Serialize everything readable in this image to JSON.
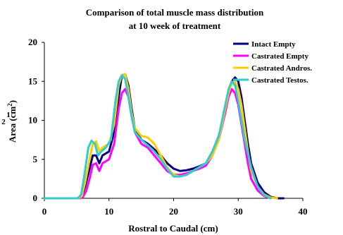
{
  "chart_data": {
    "type": "line",
    "title": "Comparison of total muscle mass distribution",
    "subtitle": "at 10 week of treatment",
    "xlabel": "Rostral to Caudal (cm)",
    "ylabel": "Area (cm",
    "ylabel_sup": "2",
    "ylabel_close": ")",
    "stray_chars": [
      "1",
      "2"
    ],
    "xlim": [
      0,
      40
    ],
    "ylim": [
      0,
      20
    ],
    "x_ticks": [
      "0",
      "10",
      "20",
      "30",
      "40"
    ],
    "y_ticks": [
      "0",
      "5",
      "10",
      "15",
      "20"
    ],
    "x_tick_values": [
      0,
      10,
      20,
      30,
      40
    ],
    "y_tick_values": [
      0,
      5,
      10,
      15,
      20
    ],
    "grid": false,
    "legend_position": "top-right",
    "series": [
      {
        "name": "Intact Empty",
        "color": "#000080",
        "x": [
          0,
          5,
          5.8,
          6.3,
          7,
          7.5,
          8,
          8.5,
          9,
          10,
          10.8,
          11.5,
          12,
          12.5,
          13,
          13.5,
          14,
          15,
          16,
          17,
          18,
          19,
          20,
          21,
          22,
          23,
          24,
          25,
          26,
          27,
          28,
          28.5,
          29,
          29.5,
          30,
          30.5,
          31,
          31.5,
          32,
          33,
          34,
          35,
          36,
          37
        ],
        "y": [
          0,
          0,
          0.2,
          1.5,
          3.8,
          5.5,
          5.5,
          4.5,
          5.5,
          6.0,
          8.5,
          13.0,
          15.8,
          15.9,
          14.5,
          11.5,
          9.0,
          7.5,
          7.0,
          6.3,
          5.5,
          4.5,
          3.8,
          3.5,
          3.6,
          3.8,
          4.1,
          4.5,
          6.0,
          8.0,
          11.5,
          13.5,
          15.0,
          15.5,
          15.0,
          13.0,
          10.0,
          7.0,
          4.5,
          2.0,
          0.8,
          0.2,
          0,
          0
        ]
      },
      {
        "name": "Castrated Empty",
        "color": "#ff00ff",
        "x": [
          0,
          5.5,
          6,
          6.5,
          7,
          7.5,
          8,
          8.5,
          9,
          10,
          10.8,
          11.5,
          12,
          12.5,
          13,
          13.5,
          14,
          15,
          16,
          17,
          18,
          19,
          20,
          21,
          22,
          23,
          24,
          25,
          26,
          27,
          28,
          28.5,
          29,
          29.5,
          30,
          30.5,
          31,
          31.5,
          32,
          33,
          34,
          35
        ],
        "y": [
          0,
          0,
          0.2,
          1.0,
          2.5,
          4.3,
          4.5,
          3.5,
          4.5,
          5.0,
          7.0,
          11.5,
          13.5,
          14.0,
          13.0,
          10.5,
          8.5,
          7.0,
          6.5,
          5.5,
          4.5,
          3.5,
          3.0,
          3.0,
          3.2,
          3.5,
          3.8,
          4.2,
          5.5,
          7.5,
          11.0,
          13.0,
          14.0,
          13.5,
          12.0,
          9.5,
          7.0,
          4.5,
          2.5,
          1.0,
          0.3,
          0
        ]
      },
      {
        "name": "Castrated Andros.",
        "color": "#ffcc00",
        "x": [
          0,
          5.3,
          5.8,
          6.3,
          7,
          7.5,
          8,
          8.5,
          9,
          10,
          10.8,
          11.5,
          12,
          12.5,
          13,
          13.5,
          14,
          15,
          16,
          17,
          18,
          19,
          20,
          21,
          22,
          23,
          24,
          25,
          26,
          27,
          28,
          28.5,
          29,
          29.5,
          30,
          30.5,
          31,
          31.5,
          32,
          33,
          34,
          35,
          36
        ],
        "y": [
          0,
          0,
          0.3,
          2.0,
          5.0,
          7.0,
          7.3,
          6.0,
          6.5,
          7.0,
          9.5,
          14.5,
          15.8,
          15.9,
          14.0,
          11.0,
          9.0,
          8.0,
          7.8,
          7.0,
          5.5,
          4.0,
          3.0,
          2.8,
          3.0,
          3.5,
          4.0,
          4.5,
          5.5,
          7.5,
          11.5,
          13.5,
          14.8,
          15.0,
          14.0,
          12.0,
          9.0,
          6.0,
          3.5,
          1.5,
          0.5,
          0.1,
          0
        ]
      },
      {
        "name": "Castrated Testos.",
        "color": "#33cccc",
        "x": [
          0,
          5.2,
          5.7,
          6.2,
          6.8,
          7.3,
          7.8,
          8.3,
          8.8,
          9.5,
          10.3,
          11,
          11.5,
          12,
          12.5,
          13,
          13.5,
          14,
          15,
          16,
          17,
          18,
          19,
          20,
          21,
          22,
          23,
          24,
          25,
          26,
          27,
          28,
          28.5,
          29,
          29.5,
          30,
          30.5,
          31,
          32,
          33,
          34,
          35
        ],
        "y": [
          0,
          0,
          0.5,
          3.0,
          6.5,
          7.4,
          7.0,
          5.5,
          6.0,
          6.5,
          7.5,
          12.5,
          15.0,
          15.8,
          15.3,
          13.0,
          10.5,
          8.5,
          7.5,
          6.8,
          6.0,
          5.0,
          3.8,
          2.8,
          2.8,
          3.0,
          3.5,
          4.0,
          4.5,
          6.0,
          8.0,
          12.0,
          14.0,
          15.0,
          14.5,
          12.5,
          10.0,
          7.5,
          4.0,
          1.5,
          0.4,
          0
        ]
      }
    ]
  }
}
